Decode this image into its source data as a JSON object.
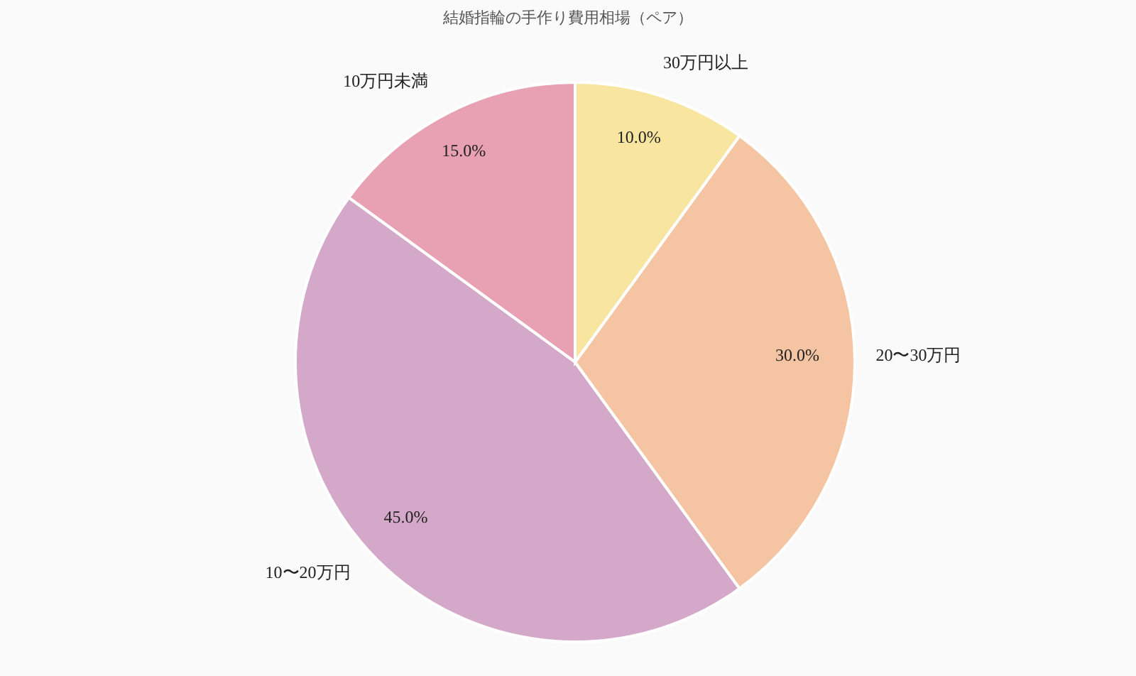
{
  "chart_data": {
    "type": "pie",
    "title": "結婚指輪の手作り費用相場（ペア）",
    "categories": [
      "10万円未満",
      "10〜20万円",
      "20〜30万円",
      "30万円以上"
    ],
    "values": [
      15,
      45,
      30,
      10
    ],
    "colors": [
      "#e8a1b3",
      "#d4a8c8",
      "#f5c5a3",
      "#f8e6a0"
    ],
    "value_labels": [
      "15.0%",
      "45.0%",
      "30.0%",
      "10.0%"
    ]
  }
}
